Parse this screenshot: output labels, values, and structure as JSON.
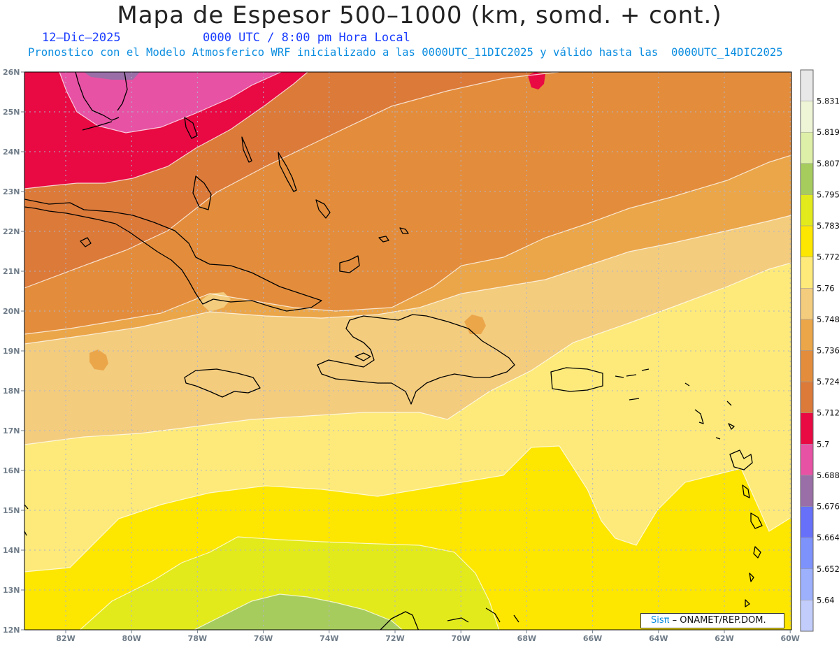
{
  "title": "Mapa de Espesor 500–1000 (km, somd. + cont.)",
  "date_label": "12–Dic–2025",
  "time_label": "0000 UTC / 8:00 pm Hora Local",
  "forecast_text": "Pronostico con el Modelo Atmosferico WRF inicializado a las 0000UTC_11DIC2025 y válido hasta las  0000UTC_14DIC2025",
  "credit": {
    "brand": "Sisπ",
    "org": " – ONAMET/REP.DOM."
  },
  "axes": {
    "lat_labels": [
      "26N",
      "25N",
      "24N",
      "23N",
      "22N",
      "21N",
      "20N",
      "19N",
      "18N",
      "17N",
      "16N",
      "15N",
      "14N",
      "13N",
      "12N"
    ],
    "lon_labels": [
      "82W",
      "80W",
      "78W",
      "76W",
      "74W",
      "72W",
      "70W",
      "68W",
      "66W",
      "64W",
      "62W",
      "60W"
    ]
  },
  "colorbar": {
    "labels": [
      "5.831",
      "5.819",
      "5.807",
      "5.795",
      "5.783",
      "5.772",
      "5.76",
      "5.748",
      "5.736",
      "5.724",
      "5.712",
      "5.7",
      "5.688",
      "5.676",
      "5.664",
      "5.652",
      "5.64"
    ],
    "colors": [
      "#e8e8e8",
      "#eef5d6",
      "#def0a8",
      "#a7cc5e",
      "#e2ea1c",
      "#fde600",
      "#fdea7b",
      "#f3cc7e",
      "#eba64a",
      "#e38d3c",
      "#dc7a3a",
      "#e90943",
      "#e752a4",
      "#9a6fa8",
      "#6670f8",
      "#7e92fc",
      "#9cb0fc",
      "#c2cdfc"
    ]
  }
}
